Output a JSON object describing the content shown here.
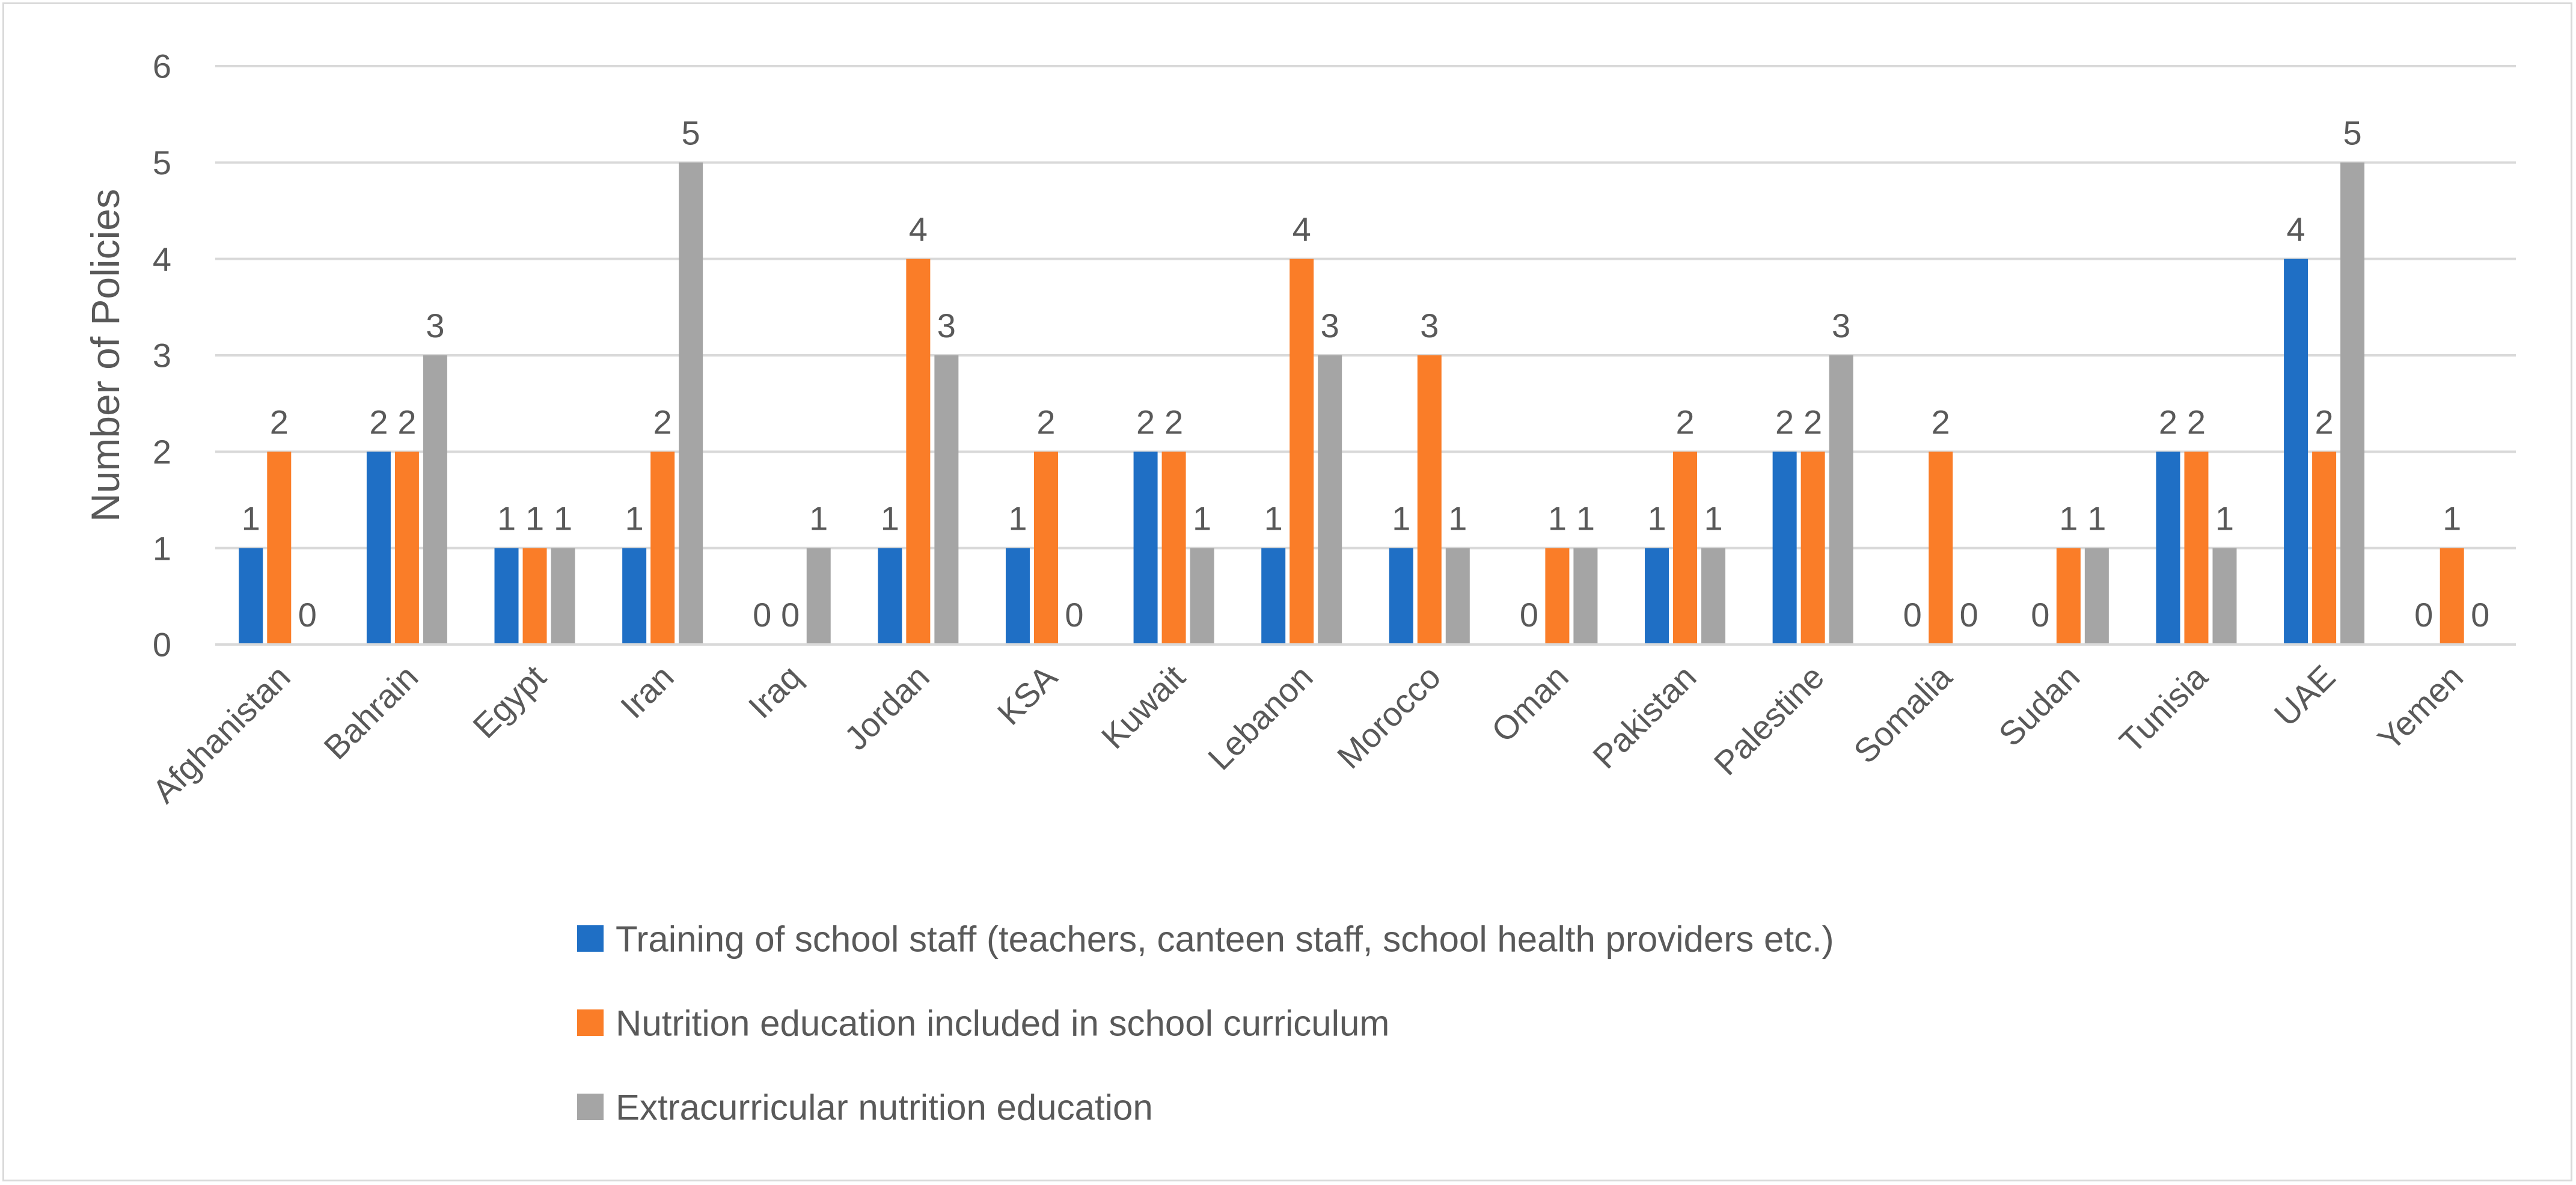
{
  "chart_data": {
    "type": "bar",
    "title": "",
    "xlabel": "",
    "ylabel": "Number of Policies",
    "ylim": [
      0,
      6
    ],
    "yticks": [
      0,
      1,
      2,
      3,
      4,
      5,
      6
    ],
    "grid": true,
    "legend_position": "bottom",
    "categories": [
      "Afghanistan",
      "Bahrain",
      "Egypt",
      "Iran",
      "Iraq",
      "Jordan",
      "KSA",
      "Kuwait",
      "Lebanon",
      "Morocco",
      "Oman",
      "Pakistan",
      "Palestine",
      "Somalia",
      "Sudan",
      "Tunisia",
      "UAE",
      "Yemen"
    ],
    "series": [
      {
        "name": "Training of school staff (teachers, canteen staff, school health providers etc.)",
        "color": "#1f6fc5",
        "values": [
          1,
          2,
          1,
          1,
          0,
          1,
          1,
          2,
          1,
          1,
          0,
          1,
          2,
          0,
          0,
          2,
          4,
          0
        ]
      },
      {
        "name": "Nutrition education included in school curriculum",
        "color": "#fa7d28",
        "values": [
          2,
          2,
          1,
          2,
          0,
          4,
          2,
          2,
          4,
          3,
          1,
          2,
          2,
          2,
          1,
          2,
          2,
          1
        ]
      },
      {
        "name": "Extracurricular nutrition education",
        "color": "#a5a5a5",
        "values": [
          0,
          3,
          1,
          5,
          1,
          3,
          0,
          1,
          3,
          1,
          1,
          1,
          3,
          0,
          1,
          1,
          5,
          0
        ]
      }
    ]
  }
}
